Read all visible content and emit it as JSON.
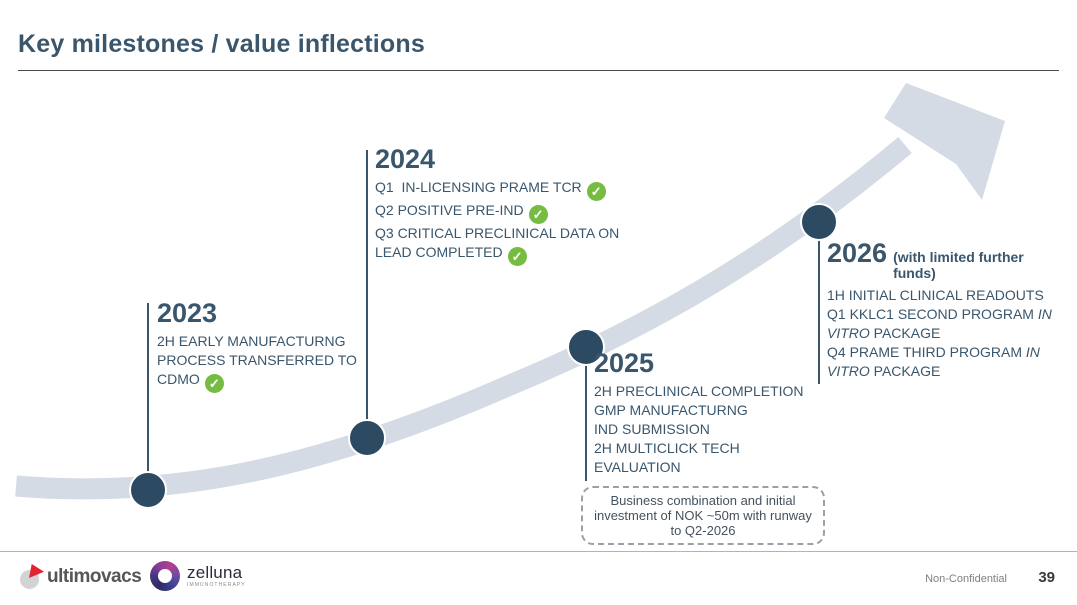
{
  "header": {
    "title": "Key milestones / value inflections"
  },
  "icons": {
    "check": "✓"
  },
  "colors": {
    "heading_slate": "#3a566c",
    "arrow_gray": "#d5dbe4",
    "dot_navy": "#2d4a63",
    "check_green": "#76bc43",
    "ultimovacs_red": "#e32330"
  },
  "milestones": [
    {
      "year": "2023",
      "note": "",
      "items": [
        {
          "segments": [
            {
              "t": "2H EARLY MANUFACTURNG PROCESS TRANSFERRED TO CDMO"
            }
          ],
          "check": true
        }
      ]
    },
    {
      "year": "2024",
      "note": "",
      "items": [
        {
          "segments": [
            {
              "t": "Q1  IN-LICENSING PRAME TCR"
            }
          ],
          "check": true
        },
        {
          "segments": [
            {
              "t": "Q2 POSITIVE PRE-IND"
            }
          ],
          "check": true
        },
        {
          "segments": [
            {
              "t": "Q3 CRITICAL PRECLINICAL DATA ON LEAD COMPLETED"
            }
          ],
          "check": true
        }
      ]
    },
    {
      "year": "2025",
      "note": "",
      "items": [
        {
          "segments": [
            {
              "t": "2H PRECLINICAL COMPLETION"
            }
          ]
        },
        {
          "segments": [
            {
              "t": "GMP MANUFACTURNG"
            }
          ]
        },
        {
          "segments": [
            {
              "t": "IND SUBMISSION"
            }
          ]
        },
        {
          "segments": [
            {
              "t": "2H MULTICLICK TECH EVALUATION"
            }
          ]
        }
      ]
    },
    {
      "year": "2026",
      "note": "(with limited further funds)",
      "items": [
        {
          "segments": [
            {
              "t": "1H INITIAL CLINICAL READOUTS"
            }
          ]
        },
        {
          "segments": [
            {
              "t": "Q1 KKLC1 SECOND PROGRAM "
            },
            {
              "t": "IN VITRO",
              "italic": true
            },
            {
              "t": " PACKAGE"
            }
          ]
        },
        {
          "segments": [
            {
              "t": "Q4 PRAME THIRD PROGRAM "
            },
            {
              "t": "IN VITRO",
              "italic": true
            },
            {
              "t": " PACKAGE"
            }
          ]
        }
      ]
    }
  ],
  "callout": {
    "text": "Business combination and initial investment of NOK ~50m with runway to Q2-2026"
  },
  "footer": {
    "ultimovacs_wordmark": "ultimovacs",
    "zelluna_wordmark": "zelluna",
    "zelluna_subtext": "IMMUNOTHERAPY",
    "confidentiality": "Non-Confidential",
    "page_number": "39"
  }
}
